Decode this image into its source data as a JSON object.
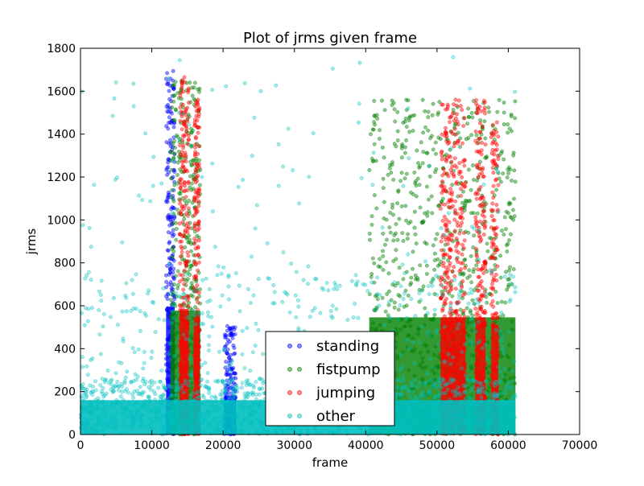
{
  "chart_data": {
    "type": "scatter",
    "title": "Plot of jrms given frame",
    "xlabel": "frame",
    "ylabel": "jrms",
    "xlim": [
      0,
      70000
    ],
    "ylim": [
      0,
      1800
    ],
    "xticks": [
      0,
      10000,
      20000,
      30000,
      40000,
      50000,
      60000,
      70000
    ],
    "yticks": [
      0,
      200,
      400,
      600,
      800,
      1000,
      1200,
      1400,
      1600,
      1800
    ],
    "grid": false,
    "legend_position": "lower-center",
    "series": [
      {
        "name": "standing",
        "color": "#0000ff",
        "clusters": [
          {
            "x_range": [
              12000,
              13200
            ],
            "y_peak": 1700,
            "density": 260
          },
          {
            "x_range": [
              20200,
              21800
            ],
            "y_peak": 520,
            "density": 160
          }
        ]
      },
      {
        "name": "fistpump",
        "color": "#008000",
        "clusters": [
          {
            "x_range": [
              12600,
              16800
            ],
            "y_peak": 1650,
            "density": 400
          },
          {
            "x_range": [
              40500,
              61000
            ],
            "y_peak": 1560,
            "density": 900
          }
        ]
      },
      {
        "name": "jumping",
        "color": "#ff0000",
        "clusters": [
          {
            "x_range": [
              13900,
              15200
            ],
            "y_peak": 1670,
            "density": 260
          },
          {
            "x_range": [
              15900,
              16700
            ],
            "y_peak": 1570,
            "density": 200
          },
          {
            "x_range": [
              50500,
              54000
            ],
            "y_peak": 1560,
            "density": 420
          },
          {
            "x_range": [
              55400,
              56800
            ],
            "y_peak": 1560,
            "density": 220
          },
          {
            "x_range": [
              57600,
              58600
            ],
            "y_peak": 1460,
            "density": 160
          }
        ]
      },
      {
        "name": "other",
        "color": "#00bfbf",
        "clusters": [
          {
            "x_range": [
              0,
              61000
            ],
            "y_peak": 1770,
            "density": 1800
          }
        ]
      }
    ]
  }
}
